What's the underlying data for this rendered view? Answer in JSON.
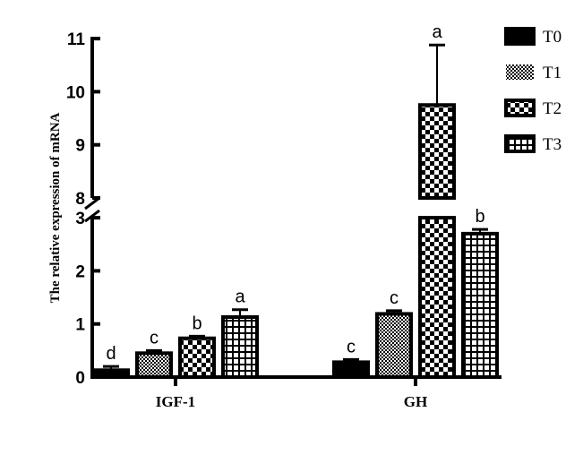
{
  "chart_data": {
    "type": "bar",
    "ylabel": "The relative expression of mRNA",
    "categories": [
      "IGF-1",
      "GH"
    ],
    "y_axis_break": [
      3,
      8
    ],
    "ylim": [
      0,
      11
    ],
    "yticks_lower": [
      0,
      1,
      2,
      3
    ],
    "yticks_upper": [
      8,
      9,
      10,
      11
    ],
    "legend_position": "top-right",
    "series": [
      {
        "name": "T0",
        "pattern": "solid",
        "values": [
          0.13,
          0.28
        ],
        "error": [
          0.07,
          0.05
        ],
        "letters": [
          "d",
          "c"
        ]
      },
      {
        "name": "T1",
        "pattern": "fine-checker",
        "values": [
          0.45,
          1.19
        ],
        "error": [
          0.05,
          0.06
        ],
        "letters": [
          "c",
          "c"
        ]
      },
      {
        "name": "T2",
        "pattern": "large-checker",
        "values": [
          0.73,
          9.75
        ],
        "error": [
          0.04,
          1.13
        ],
        "letters": [
          "b",
          "a"
        ]
      },
      {
        "name": "T3",
        "pattern": "grid",
        "values": [
          1.13,
          2.7
        ],
        "error": [
          0.14,
          0.08
        ],
        "letters": [
          "a",
          "b"
        ]
      }
    ]
  }
}
